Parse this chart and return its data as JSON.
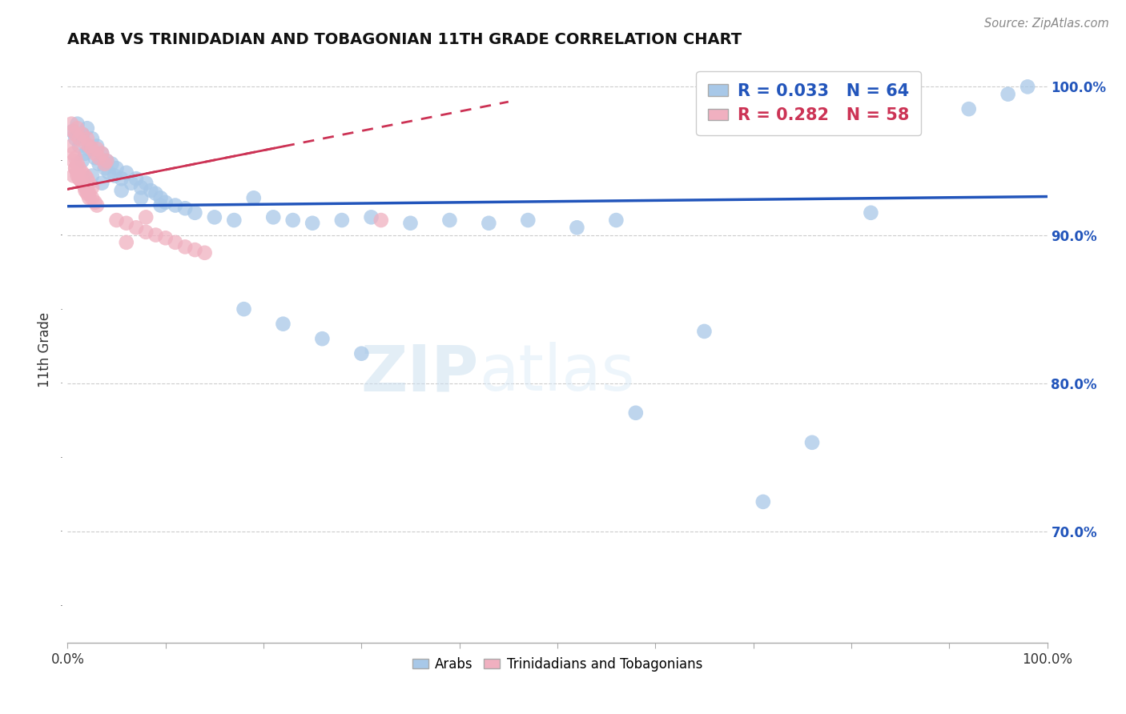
{
  "title": "ARAB VS TRINIDADIAN AND TOBAGONIAN 11TH GRADE CORRELATION CHART",
  "source": "Source: ZipAtlas.com",
  "ylabel": "11th Grade",
  "xlim": [
    0,
    1
  ],
  "ylim": [
    0.625,
    1.02
  ],
  "ytick_vals": [
    0.7,
    0.8,
    0.9,
    1.0
  ],
  "ytick_labels": [
    "70.0%",
    "80.0%",
    "90.0%",
    "100.0%"
  ],
  "grid_color": "#cccccc",
  "background_color": "#ffffff",
  "blue_color": "#a8c8e8",
  "pink_color": "#f0b0c0",
  "blue_line_color": "#2255bb",
  "pink_line_color": "#cc3355",
  "R_blue": 0.033,
  "N_blue": 64,
  "R_pink": 0.282,
  "N_pink": 58,
  "legend_labels": [
    "Arabs",
    "Trinidadians and Tobagonians"
  ],
  "watermark_zip": "ZIP",
  "watermark_atlas": "atlas",
  "blue_scatter_x": [
    0.005,
    0.008,
    0.01,
    0.012,
    0.015,
    0.018,
    0.02,
    0.022,
    0.025,
    0.028,
    0.03,
    0.032,
    0.035,
    0.038,
    0.04,
    0.042,
    0.045,
    0.048,
    0.05,
    0.055,
    0.06,
    0.065,
    0.07,
    0.075,
    0.08,
    0.085,
    0.09,
    0.095,
    0.1,
    0.11,
    0.12,
    0.13,
    0.15,
    0.17,
    0.19,
    0.21,
    0.23,
    0.25,
    0.28,
    0.31,
    0.35,
    0.39,
    0.43,
    0.47,
    0.52,
    0.56,
    0.015,
    0.025,
    0.035,
    0.055,
    0.075,
    0.095,
    0.18,
    0.22,
    0.26,
    0.3,
    0.82,
    0.92,
    0.96,
    0.98,
    0.58,
    0.65,
    0.71,
    0.76
  ],
  "blue_scatter_y": [
    0.97,
    0.965,
    0.975,
    0.96,
    0.968,
    0.955,
    0.972,
    0.958,
    0.965,
    0.952,
    0.96,
    0.948,
    0.955,
    0.945,
    0.95,
    0.942,
    0.948,
    0.94,
    0.945,
    0.938,
    0.942,
    0.935,
    0.938,
    0.932,
    0.935,
    0.93,
    0.928,
    0.925,
    0.922,
    0.92,
    0.918,
    0.915,
    0.912,
    0.91,
    0.925,
    0.912,
    0.91,
    0.908,
    0.91,
    0.912,
    0.908,
    0.91,
    0.908,
    0.91,
    0.905,
    0.91,
    0.95,
    0.94,
    0.935,
    0.93,
    0.925,
    0.92,
    0.85,
    0.84,
    0.83,
    0.82,
    0.915,
    0.985,
    0.995,
    1.0,
    0.78,
    0.835,
    0.72,
    0.76
  ],
  "pink_scatter_x": [
    0.004,
    0.006,
    0.008,
    0.01,
    0.012,
    0.015,
    0.018,
    0.02,
    0.022,
    0.025,
    0.028,
    0.03,
    0.032,
    0.035,
    0.038,
    0.04,
    0.004,
    0.006,
    0.008,
    0.01,
    0.012,
    0.015,
    0.018,
    0.02,
    0.022,
    0.025,
    0.008,
    0.01,
    0.012,
    0.015,
    0.018,
    0.02,
    0.022,
    0.025,
    0.028,
    0.03,
    0.006,
    0.008,
    0.01,
    0.012,
    0.015,
    0.018,
    0.02,
    0.022,
    0.05,
    0.06,
    0.07,
    0.08,
    0.09,
    0.1,
    0.11,
    0.12,
    0.13,
    0.14,
    0.06,
    0.08,
    0.32,
    0.006
  ],
  "pink_scatter_y": [
    0.975,
    0.97,
    0.968,
    0.972,
    0.965,
    0.968,
    0.962,
    0.965,
    0.96,
    0.958,
    0.955,
    0.958,
    0.952,
    0.955,
    0.948,
    0.95,
    0.96,
    0.955,
    0.952,
    0.948,
    0.945,
    0.942,
    0.94,
    0.938,
    0.935,
    0.932,
    0.945,
    0.94,
    0.938,
    0.935,
    0.932,
    0.93,
    0.928,
    0.925,
    0.922,
    0.92,
    0.95,
    0.945,
    0.942,
    0.938,
    0.935,
    0.93,
    0.928,
    0.925,
    0.91,
    0.908,
    0.905,
    0.902,
    0.9,
    0.898,
    0.895,
    0.892,
    0.89,
    0.888,
    0.895,
    0.912,
    0.91,
    0.94
  ]
}
